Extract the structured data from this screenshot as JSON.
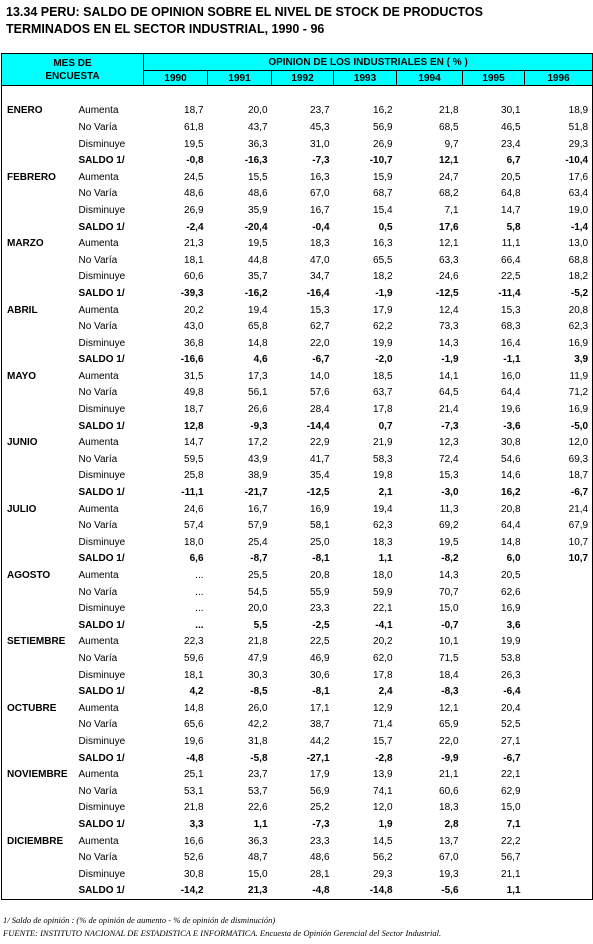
{
  "title": {
    "line1": "13.34  PERU: SALDO DE OPINION SOBRE EL NIVEL DE STOCK DE PRODUCTOS",
    "line2": "TERMINADOS EN EL SECTOR INDUSTRIAL, 1990 - 96"
  },
  "header": {
    "mes_line1": "MES DE",
    "mes_line2": "ENCUESTA",
    "opinion": "OPINION  DE  LOS  INDUSTRIALES   EN  ( % )",
    "years": [
      "1990",
      "1991",
      "1992",
      "1993",
      "1994",
      "1995",
      "1996"
    ]
  },
  "months": [
    {
      "name": "ENERO",
      "rows": [
        {
          "label": "Aumenta",
          "values": [
            "18,7",
            "20,0",
            "23,7",
            "16,2",
            "21,8",
            "30,1",
            "18,9"
          ]
        },
        {
          "label": "No Varía",
          "values": [
            "61,8",
            "43,7",
            "45,3",
            "56,9",
            "68,5",
            "46,5",
            "51,8"
          ]
        },
        {
          "label": "Disminuye",
          "values": [
            "19,5",
            "36,3",
            "31,0",
            "26,9",
            "9,7",
            "23,4",
            "29,3"
          ]
        },
        {
          "label": "SALDO 1/",
          "values": [
            "-0,8",
            "-16,3",
            "-7,3",
            "-10,7",
            "12,1",
            "6,7",
            "-10,4"
          ]
        }
      ]
    },
    {
      "name": "FEBRERO",
      "rows": [
        {
          "label": "Aumenta",
          "values": [
            "24,5",
            "15,5",
            "16,3",
            "15,9",
            "24,7",
            "20,5",
            "17,6"
          ]
        },
        {
          "label": "No Varía",
          "values": [
            "48,6",
            "48,6",
            "67,0",
            "68,7",
            "68,2",
            "64,8",
            "63,4"
          ]
        },
        {
          "label": "Disminuye",
          "values": [
            "26,9",
            "35,9",
            "16,7",
            "15,4",
            "7,1",
            "14,7",
            "19,0"
          ]
        },
        {
          "label": "SALDO 1/",
          "values": [
            "-2,4",
            "-20,4",
            "-0,4",
            "0,5",
            "17,6",
            "5,8",
            "-1,4"
          ]
        }
      ]
    },
    {
      "name": "MARZO",
      "rows": [
        {
          "label": "Aumenta",
          "values": [
            "21,3",
            "19,5",
            "18,3",
            "16,3",
            "12,1",
            "11,1",
            "13,0"
          ]
        },
        {
          "label": "No Varía",
          "values": [
            "18,1",
            "44,8",
            "47,0",
            "65,5",
            "63,3",
            "66,4",
            "68,8"
          ]
        },
        {
          "label": "Disminuye",
          "values": [
            "60,6",
            "35,7",
            "34,7",
            "18,2",
            "24,6",
            "22,5",
            "18,2"
          ]
        },
        {
          "label": "SALDO 1/",
          "values": [
            "-39,3",
            "-16,2",
            "-16,4",
            "-1,9",
            "-12,5",
            "-11,4",
            "-5,2"
          ]
        }
      ]
    },
    {
      "name": "ABRIL",
      "rows": [
        {
          "label": "Aumenta",
          "values": [
            "20,2",
            "19,4",
            "15,3",
            "17,9",
            "12,4",
            "15,3",
            "20,8"
          ]
        },
        {
          "label": "No Varía",
          "values": [
            "43,0",
            "65,8",
            "62,7",
            "62,2",
            "73,3",
            "68,3",
            "62,3"
          ]
        },
        {
          "label": "Disminuye",
          "values": [
            "36,8",
            "14,8",
            "22,0",
            "19,9",
            "14,3",
            "16,4",
            "16,9"
          ]
        },
        {
          "label": "SALDO 1/",
          "values": [
            "-16,6",
            "4,6",
            "-6,7",
            "-2,0",
            "-1,9",
            "-1,1",
            "3,9"
          ]
        }
      ]
    },
    {
      "name": "MAYO",
      "rows": [
        {
          "label": "Aumenta",
          "values": [
            "31,5",
            "17,3",
            "14,0",
            "18,5",
            "14,1",
            "16,0",
            "11,9"
          ]
        },
        {
          "label": "No Varía",
          "values": [
            "49,8",
            "56,1",
            "57,6",
            "63,7",
            "64,5",
            "64,4",
            "71,2"
          ]
        },
        {
          "label": "Disminuye",
          "values": [
            "18,7",
            "26,6",
            "28,4",
            "17,8",
            "21,4",
            "19,6",
            "16,9"
          ]
        },
        {
          "label": "SALDO 1/",
          "values": [
            "12,8",
            "-9,3",
            "-14,4",
            "0,7",
            "-7,3",
            "-3,6",
            "-5,0"
          ]
        }
      ]
    },
    {
      "name": "JUNIO",
      "rows": [
        {
          "label": "Aumenta",
          "values": [
            "14,7",
            "17,2",
            "22,9",
            "21,9",
            "12,3",
            "30,8",
            "12,0"
          ]
        },
        {
          "label": "No Varía",
          "values": [
            "59,5",
            "43,9",
            "41,7",
            "58,3",
            "72,4",
            "54,6",
            "69,3"
          ]
        },
        {
          "label": "Disminuye",
          "values": [
            "25,8",
            "38,9",
            "35,4",
            "19,8",
            "15,3",
            "14,6",
            "18,7"
          ]
        },
        {
          "label": "SALDO 1/",
          "values": [
            "-11,1",
            "-21,7",
            "-12,5",
            "2,1",
            "-3,0",
            "16,2",
            "-6,7"
          ]
        }
      ]
    },
    {
      "name": "JULIO",
      "rows": [
        {
          "label": "Aumenta",
          "values": [
            "24,6",
            "16,7",
            "16,9",
            "19,4",
            "11,3",
            "20,8",
            "21,4"
          ]
        },
        {
          "label": "No Varía",
          "values": [
            "57,4",
            "57,9",
            "58,1",
            "62,3",
            "69,2",
            "64,4",
            "67,9"
          ]
        },
        {
          "label": "Disminuye",
          "values": [
            "18,0",
            "25,4",
            "25,0",
            "18,3",
            "19,5",
            "14,8",
            "10,7"
          ]
        },
        {
          "label": "SALDO 1/",
          "values": [
            "6,6",
            "-8,7",
            "-8,1",
            "1,1",
            "-8,2",
            "6,0",
            "10,7"
          ]
        }
      ]
    },
    {
      "name": "AGOSTO",
      "rows": [
        {
          "label": "Aumenta",
          "values": [
            "...",
            "25,5",
            "20,8",
            "18,0",
            "14,3",
            "20,5",
            ""
          ]
        },
        {
          "label": "No Varía",
          "values": [
            "...",
            "54,5",
            "55,9",
            "59,9",
            "70,7",
            "62,6",
            ""
          ]
        },
        {
          "label": "Disminuye",
          "values": [
            "...",
            "20,0",
            "23,3",
            "22,1",
            "15,0",
            "16,9",
            ""
          ]
        },
        {
          "label": "SALDO 1/",
          "values": [
            "...",
            "5,5",
            "-2,5",
            "-4,1",
            "-0,7",
            "3,6",
            ""
          ]
        }
      ]
    },
    {
      "name": "SETIEMBRE",
      "rows": [
        {
          "label": "Aumenta",
          "values": [
            "22,3",
            "21,8",
            "22,5",
            "20,2",
            "10,1",
            "19,9",
            ""
          ]
        },
        {
          "label": "No Varía",
          "values": [
            "59,6",
            "47,9",
            "46,9",
            "62,0",
            "71,5",
            "53,8",
            ""
          ]
        },
        {
          "label": "Disminuye",
          "values": [
            "18,1",
            "30,3",
            "30,6",
            "17,8",
            "18,4",
            "26,3",
            ""
          ]
        },
        {
          "label": "SALDO 1/",
          "values": [
            "4,2",
            "-8,5",
            "-8,1",
            "2,4",
            "-8,3",
            "-6,4",
            ""
          ]
        }
      ]
    },
    {
      "name": "OCTUBRE",
      "rows": [
        {
          "label": "Aumenta",
          "values": [
            "14,8",
            "26,0",
            "17,1",
            "12,9",
            "12,1",
            "20,4",
            ""
          ]
        },
        {
          "label": "No Varía",
          "values": [
            "65,6",
            "42,2",
            "38,7",
            "71,4",
            "65,9",
            "52,5",
            ""
          ]
        },
        {
          "label": "Disminuye",
          "values": [
            "19,6",
            "31,8",
            "44,2",
            "15,7",
            "22,0",
            "27,1",
            ""
          ]
        },
        {
          "label": "SALDO 1/",
          "values": [
            "-4,8",
            "-5,8",
            "-27,1",
            "-2,8",
            "-9,9",
            "-6,7",
            ""
          ]
        }
      ]
    },
    {
      "name": "NOVIEMBRE",
      "rows": [
        {
          "label": "Aumenta",
          "values": [
            "25,1",
            "23,7",
            "17,9",
            "13,9",
            "21,1",
            "22,1",
            ""
          ]
        },
        {
          "label": "No Varía",
          "values": [
            "53,1",
            "53,7",
            "56,9",
            "74,1",
            "60,6",
            "62,9",
            ""
          ]
        },
        {
          "label": "Disminuye",
          "values": [
            "21,8",
            "22,6",
            "25,2",
            "12,0",
            "18,3",
            "15,0",
            ""
          ]
        },
        {
          "label": "SALDO 1/",
          "values": [
            "3,3",
            "1,1",
            "-7,3",
            "1,9",
            "2,8",
            "7,1",
            ""
          ]
        }
      ]
    },
    {
      "name": "DICIEMBRE",
      "rows": [
        {
          "label": "Aumenta",
          "values": [
            "16,6",
            "36,3",
            "23,3",
            "14,5",
            "13,7",
            "22,2",
            ""
          ]
        },
        {
          "label": "No Varía",
          "values": [
            "52,6",
            "48,7",
            "48,6",
            "56,2",
            "67,0",
            "56,7",
            ""
          ]
        },
        {
          "label": "Disminuye",
          "values": [
            "30,8",
            "15,0",
            "28,1",
            "29,3",
            "19,3",
            "21,1",
            ""
          ]
        },
        {
          "label": "SALDO 1/",
          "values": [
            "-14,2",
            "21,3",
            "-4,8",
            "-14,8",
            "-5,6",
            "1,1",
            ""
          ]
        }
      ]
    }
  ],
  "notes": {
    "note1": "1/ Saldo de opinión : (% de opinión de aumento - % de opinión de disminución)",
    "source": "FUENTE: INSTITUTO NACIONAL DE ESTADISTICA E INFORMATICA. Encuesta de Opinión Gerencial del Sector Industrial."
  }
}
